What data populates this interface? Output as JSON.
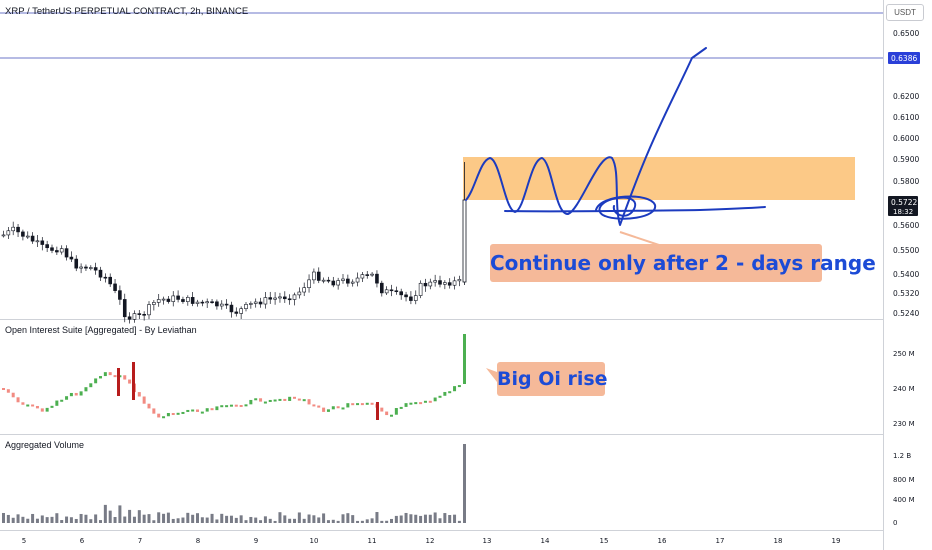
{
  "header": {
    "symbol_title": "XRP / TetherUS PERPETUAL CONTRACT, 2h, BINANCE",
    "currency": "USDT"
  },
  "price_axis": {
    "ticks": [
      "0.6500",
      "0.6386",
      "0.6200",
      "0.6100",
      "0.6000",
      "0.5900",
      "0.5800",
      "0.5722",
      "0.5600",
      "0.5500",
      "0.5400",
      "0.5320",
      "0.5240"
    ],
    "current_price": "0.5722",
    "countdown": "18:32",
    "marked_level": "0.6386"
  },
  "panes": {
    "oi_title": "Open Interest Suite [Aggregated] - By Leviathan",
    "oi_ticks": [
      "250 M",
      "240 M",
      "230 M"
    ],
    "volume_title": "Aggregated Volume",
    "volume_ticks": [
      "1.2 B",
      "800 M",
      "400 M",
      "0"
    ]
  },
  "time_axis": {
    "labels": [
      "5",
      "6",
      "7",
      "8",
      "9",
      "10",
      "11",
      "12",
      "13",
      "14",
      "15",
      "16",
      "17",
      "18",
      "19"
    ]
  },
  "annotations": {
    "range_note": "Continue only after 2 - days range",
    "oi_note": "Big Oi rise"
  },
  "colors": {
    "up": "#26a69a",
    "down": "#ef5350",
    "price_line": "#3b4ab8",
    "zone": "#fbbf72",
    "volume": "#787b86",
    "oi_rise": "#4caf50",
    "oi_big_down": "#b71c1c",
    "ink": "#1c3bbf",
    "annotation_bg": "#f5b999",
    "annotation_text": "#1c4bd6"
  }
}
